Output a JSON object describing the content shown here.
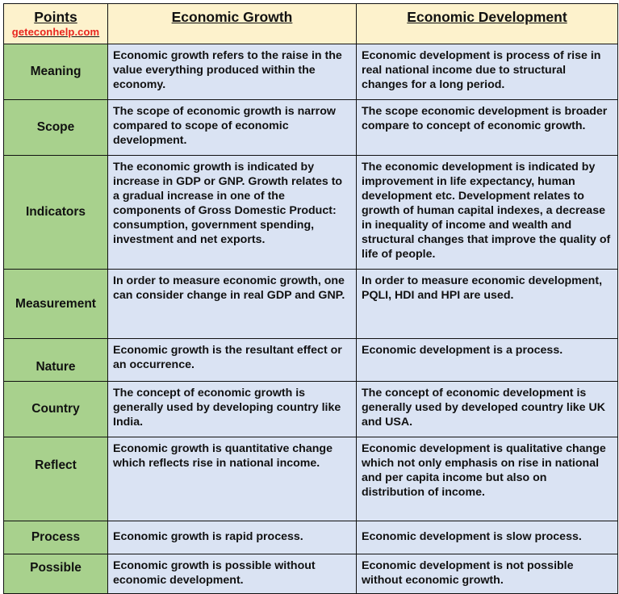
{
  "header": {
    "points": "Points",
    "site": "geteconhelp.com",
    "growth": "Economic Growth",
    "development": "Economic Development"
  },
  "rows": [
    {
      "label": "Meaning",
      "growth": "Economic growth refers to the raise in the value everything produced within the economy.",
      "development": "Economic development is process of rise in real national income due to structural changes for a long period."
    },
    {
      "label": "Scope",
      "growth": "The scope of economic growth is narrow compared to scope of economic development.",
      "development": "The scope economic development is broader compare to concept of economic growth."
    },
    {
      "label": "Indicators",
      "growth": "The economic growth is indicated by increase in GDP or GNP. Growth relates to a gradual increase in one of the components of Gross Domestic Product: consumption, government spending, investment and net exports.",
      "development": "The economic development is indicated by improvement in life expectancy, human development etc. Development relates to growth of human capital indexes, a decrease in inequality of income and wealth and structural changes that improve the quality of life of people."
    },
    {
      "label": "Measurement",
      "growth": "In order to measure economic growth, one can consider change in real GDP and GNP.",
      "development": "In order to measure economic development, PQLI, HDI and HPI are used."
    },
    {
      "label": "Nature",
      "growth": "Economic growth is the resultant effect or an occurrence.",
      "development": "Economic development is a process."
    },
    {
      "label": "Country",
      "growth": "The concept of economic growth is generally used by developing country like India.",
      "development": "The concept of economic development is generally used by developed country like UK and USA."
    },
    {
      "label": "Reflect",
      "growth": "Economic growth is quantitative change which reflects rise in national income.",
      "development": "Economic development is qualitative change which not only emphasis on rise in national and per capita income but also on distribution of income."
    },
    {
      "label": "Process",
      "growth": "Economic growth is rapid process.",
      "development": "Economic development is slow process."
    },
    {
      "label": "Possible",
      "growth": "Economic growth is possible without economic development.",
      "development": "Economic development is not possible without economic growth."
    }
  ]
}
